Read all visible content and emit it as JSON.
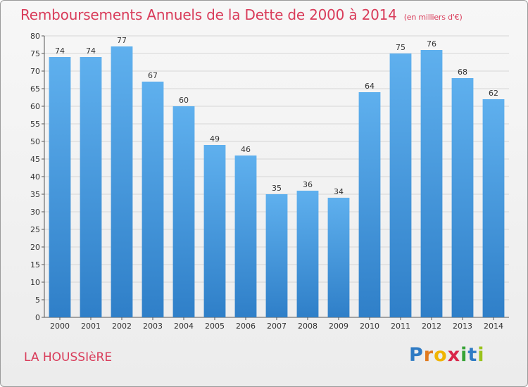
{
  "chart_data": {
    "type": "bar",
    "title": "Remboursements Annuels de la Dette de 2000 à 2014",
    "subtitle": "(en milliers d'€)",
    "categories": [
      "2000",
      "2001",
      "2002",
      "2003",
      "2004",
      "2005",
      "2006",
      "2007",
      "2008",
      "2009",
      "2010",
      "2011",
      "2012",
      "2013",
      "2014"
    ],
    "values": [
      74,
      74,
      77,
      67,
      60,
      49,
      46,
      35,
      36,
      34,
      64,
      75,
      76,
      68,
      62
    ],
    "ylim": [
      0,
      80
    ],
    "yticks": [
      0,
      5,
      10,
      15,
      20,
      25,
      30,
      35,
      40,
      45,
      50,
      55,
      60,
      65,
      70,
      75,
      80
    ],
    "grid": true,
    "bar_color": "#3a8fd8",
    "legend": "none"
  },
  "footer": {
    "commune": "LA HOUSSIèRE",
    "brand_letters": [
      "P",
      "r",
      "o",
      "x",
      "i",
      "t",
      "i"
    ],
    "brand_colors": [
      "#2f7bc4",
      "#e07a1f",
      "#f0b400",
      "#d9264a",
      "#36a336",
      "#2f7bc4",
      "#9ac31c"
    ]
  }
}
